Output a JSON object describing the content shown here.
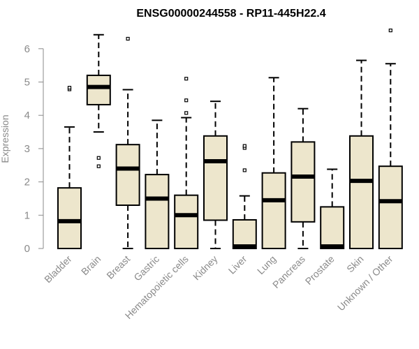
{
  "colors": {
    "box_fill": "#ede6cc",
    "stroke": "#000000",
    "axis": "#8a8a8a"
  },
  "chart_data": {
    "type": "boxplot",
    "title": "ENSG00000244558 - RP11-445H22.4",
    "ylabel": "Expression",
    "xlabel": "",
    "ylim": [
      0,
      6.5
    ],
    "yticks": [
      0,
      1,
      2,
      3,
      4,
      5,
      6
    ],
    "grid": false,
    "categories": [
      "Bladder",
      "Brain",
      "Breast",
      "Gastric",
      "Hematopoietic cells",
      "Kidney",
      "Liver",
      "Lung",
      "Pancreas",
      "Prostate",
      "Skin",
      "Unknown / Other"
    ],
    "boxes": [
      {
        "category": "Bladder",
        "whisker_low": 0,
        "q1": 0,
        "median": 0.82,
        "q3": 1.82,
        "whisker_high": 3.65,
        "outliers": [
          4.78,
          4.83
        ]
      },
      {
        "category": "Brain",
        "whisker_low": 3.5,
        "q1": 4.32,
        "median": 4.85,
        "q3": 5.2,
        "whisker_high": 6.42,
        "outliers": [
          2.47,
          2.72
        ]
      },
      {
        "category": "Breast",
        "whisker_low": 0,
        "q1": 1.3,
        "median": 2.4,
        "q3": 3.12,
        "whisker_high": 4.77,
        "outliers": [
          6.3
        ]
      },
      {
        "category": "Gastric",
        "whisker_low": 0,
        "q1": 0,
        "median": 1.5,
        "q3": 2.22,
        "whisker_high": 3.85,
        "outliers": []
      },
      {
        "category": "Hematopoietic cells",
        "whisker_low": 0,
        "q1": 0,
        "median": 1.0,
        "q3": 1.6,
        "whisker_high": 3.93,
        "outliers": [
          4.07,
          4.45,
          5.1
        ]
      },
      {
        "category": "Kidney",
        "whisker_low": 0,
        "q1": 0.85,
        "median": 2.62,
        "q3": 3.38,
        "whisker_high": 4.42,
        "outliers": []
      },
      {
        "category": "Liver",
        "whisker_low": 0,
        "q1": 0,
        "median": 0.02,
        "q3": 0.86,
        "whisker_high": 1.58,
        "outliers": [
          2.35,
          3.02,
          3.08
        ]
      },
      {
        "category": "Lung",
        "whisker_low": 0,
        "q1": 0,
        "median": 1.45,
        "q3": 2.27,
        "whisker_high": 5.13,
        "outliers": []
      },
      {
        "category": "Pancreas",
        "whisker_low": 0,
        "q1": 0.8,
        "median": 2.16,
        "q3": 3.2,
        "whisker_high": 4.2,
        "outliers": []
      },
      {
        "category": "Prostate",
        "whisker_low": 0,
        "q1": 0,
        "median": 0.02,
        "q3": 1.25,
        "whisker_high": 2.38,
        "outliers": []
      },
      {
        "category": "Skin",
        "whisker_low": 0,
        "q1": 0,
        "median": 2.03,
        "q3": 3.38,
        "whisker_high": 5.65,
        "outliers": []
      },
      {
        "category": "Unknown / Other",
        "whisker_low": 0,
        "q1": 0,
        "median": 1.42,
        "q3": 2.47,
        "whisker_high": 5.55,
        "outliers": [
          6.55
        ]
      }
    ]
  }
}
